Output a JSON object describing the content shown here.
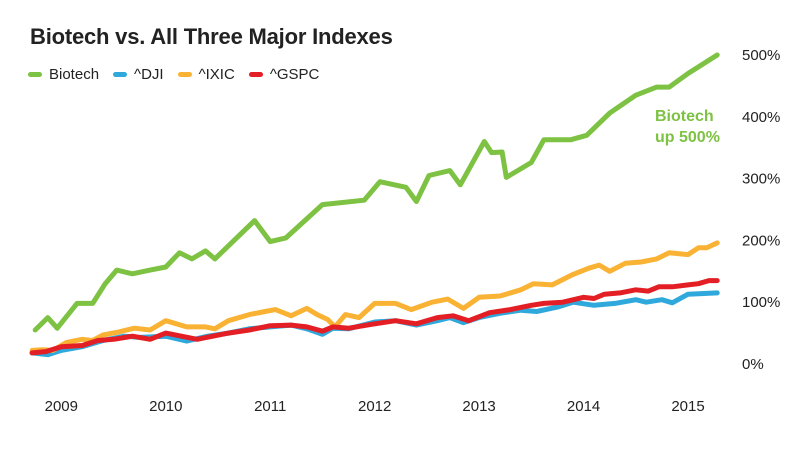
{
  "chart_data": {
    "type": "line",
    "title": "Biotech vs. All Three Major Indexes",
    "xlabel": "",
    "ylabel": "",
    "ylim": [
      0,
      500
    ],
    "xlim": [
      2008.7,
      2015.45
    ],
    "x_tick_values": [
      2009,
      2010,
      2011,
      2012,
      2013,
      2014,
      2015
    ],
    "x_tick_labels": [
      "2009",
      "2010",
      "2011",
      "2012",
      "2013",
      "2014",
      "2015"
    ],
    "y_tick_values": [
      0,
      100,
      200,
      300,
      400,
      500
    ],
    "y_tick_labels": [
      "0%",
      "100%",
      "200%",
      "300%",
      "400%",
      "500%"
    ],
    "grid": false,
    "legend_position": "top-left",
    "annotation": {
      "lines": [
        "Biotech",
        "up 500%"
      ],
      "color": "#7dc242"
    },
    "series": [
      {
        "name": "Biotech",
        "color": "#7dc242",
        "x": [
          2008.75,
          2008.87,
          2008.96,
          2009.15,
          2009.3,
          2009.42,
          2009.53,
          2009.68,
          2009.85,
          2010.0,
          2010.13,
          2010.25,
          2010.38,
          2010.47,
          2010.85,
          2011.0,
          2011.15,
          2011.5,
          2011.9,
          2012.05,
          2012.3,
          2012.4,
          2012.52,
          2012.72,
          2012.82,
          2013.05,
          2013.12,
          2013.22,
          2013.26,
          2013.5,
          2013.62,
          2013.88,
          2014.03,
          2014.25,
          2014.5,
          2014.7,
          2014.82,
          2015.0,
          2015.28
        ],
        "values": [
          55,
          75,
          58,
          98,
          98,
          130,
          152,
          146,
          152,
          157,
          180,
          170,
          183,
          170,
          232,
          198,
          204,
          258,
          265,
          295,
          286,
          263,
          305,
          313,
          290,
          360,
          342,
          343,
          302,
          326,
          363,
          363,
          370,
          406,
          435,
          448,
          448,
          470,
          500
        ]
      },
      {
        "name": "^DJI",
        "color": "#2fa8dc",
        "x": [
          2008.72,
          2008.87,
          2009.0,
          2009.2,
          2009.4,
          2009.6,
          2009.75,
          2010.0,
          2010.2,
          2010.4,
          2010.6,
          2010.8,
          2011.0,
          2011.2,
          2011.35,
          2011.5,
          2011.6,
          2011.75,
          2012.0,
          2012.2,
          2012.4,
          2012.6,
          2012.72,
          2012.85,
          2013.0,
          2013.2,
          2013.4,
          2013.55,
          2013.75,
          2013.9,
          2014.1,
          2014.3,
          2014.5,
          2014.6,
          2014.75,
          2014.85,
          2015.0,
          2015.28
        ],
        "values": [
          18,
          15,
          22,
          28,
          38,
          45,
          43,
          45,
          37,
          45,
          50,
          57,
          60,
          63,
          57,
          48,
          58,
          57,
          68,
          70,
          63,
          70,
          75,
          67,
          75,
          82,
          87,
          85,
          92,
          100,
          95,
          98,
          104,
          100,
          104,
          99,
          113,
          115
        ]
      },
      {
        "name": "^IXIC",
        "color": "#f9b233",
        "x": [
          2008.72,
          2008.82,
          2008.92,
          2009.05,
          2009.2,
          2009.3,
          2009.4,
          2009.55,
          2009.7,
          2009.85,
          2010.0,
          2010.2,
          2010.38,
          2010.47,
          2010.6,
          2010.8,
          2010.95,
          2011.05,
          2011.2,
          2011.35,
          2011.45,
          2011.55,
          2011.62,
          2011.72,
          2011.85,
          2012.0,
          2012.2,
          2012.35,
          2012.55,
          2012.7,
          2012.85,
          2013.0,
          2013.2,
          2013.4,
          2013.52,
          2013.7,
          2013.9,
          2014.05,
          2014.15,
          2014.25,
          2014.4,
          2014.55,
          2014.7,
          2014.82,
          2015.0,
          2015.1,
          2015.18,
          2015.28
        ],
        "values": [
          22,
          23,
          22,
          35,
          40,
          38,
          47,
          52,
          58,
          55,
          70,
          60,
          60,
          57,
          70,
          80,
          85,
          88,
          78,
          90,
          80,
          72,
          60,
          80,
          75,
          98,
          98,
          88,
          100,
          105,
          90,
          108,
          110,
          120,
          130,
          128,
          145,
          155,
          160,
          150,
          163,
          165,
          170,
          180,
          177,
          188,
          188,
          196
        ]
      },
      {
        "name": "^GSPC",
        "color": "#e31e24",
        "x": [
          2008.72,
          2008.85,
          2009.0,
          2009.2,
          2009.35,
          2009.5,
          2009.68,
          2009.85,
          2010.0,
          2010.15,
          2010.3,
          2010.45,
          2010.6,
          2010.8,
          2011.0,
          2011.2,
          2011.35,
          2011.5,
          2011.6,
          2011.75,
          2012.0,
          2012.2,
          2012.4,
          2012.6,
          2012.75,
          2012.9,
          2013.1,
          2013.3,
          2013.5,
          2013.62,
          2013.8,
          2014.0,
          2014.1,
          2014.2,
          2014.35,
          2014.5,
          2014.62,
          2014.72,
          2014.85,
          2015.0,
          2015.1,
          2015.2,
          2015.28
        ],
        "values": [
          18,
          20,
          28,
          30,
          38,
          40,
          45,
          40,
          50,
          45,
          40,
          45,
          50,
          55,
          62,
          63,
          60,
          53,
          60,
          58,
          65,
          70,
          65,
          75,
          78,
          70,
          83,
          88,
          95,
          98,
          100,
          108,
          106,
          113,
          115,
          120,
          118,
          125,
          125,
          128,
          130,
          135,
          135
        ]
      }
    ]
  }
}
